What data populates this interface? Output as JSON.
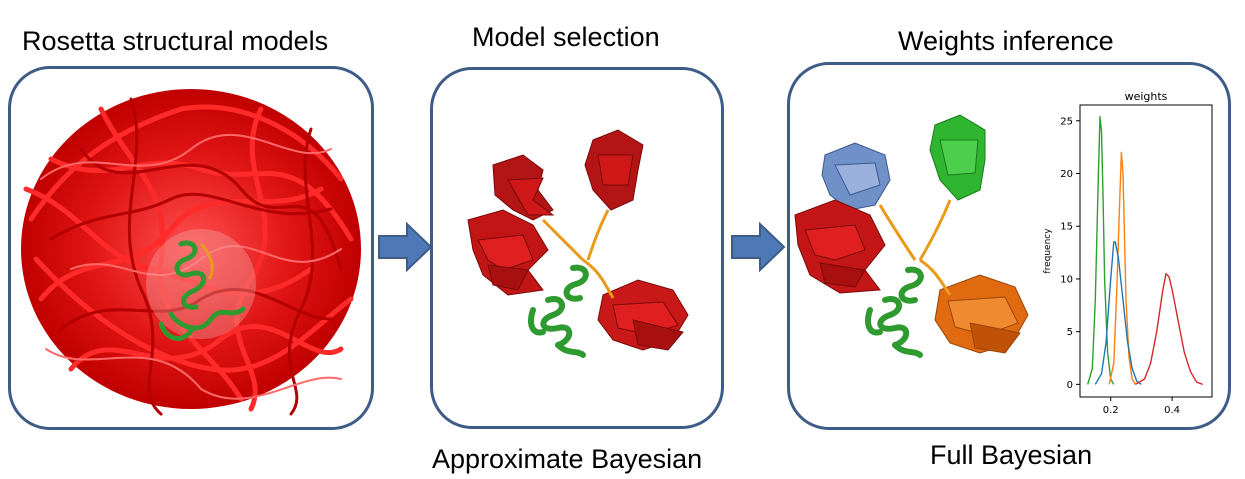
{
  "stages": [
    {
      "title": "Rosetta structural models",
      "caption": ""
    },
    {
      "title": "Model selection",
      "caption": "Approximate Bayesian"
    },
    {
      "title": "Weights inference",
      "caption": "Full Bayesian"
    }
  ],
  "colors": {
    "panel_border": "#3e5d86",
    "arrow_fill": "#4f79b6",
    "protein_red": "#d01818",
    "protein_dark_red": "#a81010",
    "protein_green": "#2f9a2f",
    "protein_blue": "#7090c8",
    "protein_orange": "#e06a10",
    "linker_orange": "#e89a18"
  },
  "chart_data": {
    "type": "line",
    "title": "weights",
    "xlabel": "",
    "ylabel": "frequency",
    "xlim": [
      0.1,
      0.53
    ],
    "ylim": [
      -1.2,
      26.5
    ],
    "xticks": [
      0.2,
      0.4
    ],
    "xtick_labels": [
      "0.2",
      "0.4"
    ],
    "yticks": [
      0,
      5,
      10,
      15,
      20,
      25
    ],
    "ytick_labels": [
      "0",
      "5",
      "10",
      "15",
      "20",
      "25"
    ],
    "grid": false,
    "series": [
      {
        "color": "#2ca02c",
        "x": [
          0.125,
          0.14,
          0.15,
          0.16,
          0.165,
          0.17,
          0.175,
          0.18,
          0.19,
          0.2,
          0.21
        ],
        "y": [
          0,
          1.5,
          8,
          20,
          25.4,
          24,
          18,
          10,
          3,
          0.5,
          0
        ]
      },
      {
        "color": "#ff7f0e",
        "x": [
          0.195,
          0.21,
          0.22,
          0.23,
          0.235,
          0.24,
          0.245,
          0.25,
          0.26,
          0.27,
          0.28
        ],
        "y": [
          0,
          2,
          9,
          18,
          22,
          20,
          14,
          8,
          2.5,
          0.5,
          0
        ]
      },
      {
        "color": "#1f77b4",
        "x": [
          0.15,
          0.17,
          0.185,
          0.2,
          0.21,
          0.215,
          0.225,
          0.24,
          0.255,
          0.27,
          0.285,
          0.3
        ],
        "y": [
          0,
          1,
          4,
          10,
          13.5,
          13.5,
          12,
          8,
          4,
          1.5,
          0.3,
          0
        ]
      },
      {
        "color": "#d62728",
        "x": [
          0.28,
          0.31,
          0.33,
          0.35,
          0.37,
          0.38,
          0.39,
          0.4,
          0.42,
          0.44,
          0.46,
          0.48,
          0.5
        ],
        "y": [
          0,
          0.5,
          2,
          5,
          9,
          10.5,
          10.2,
          9,
          6,
          3,
          1.2,
          0.2,
          0
        ]
      }
    ]
  }
}
